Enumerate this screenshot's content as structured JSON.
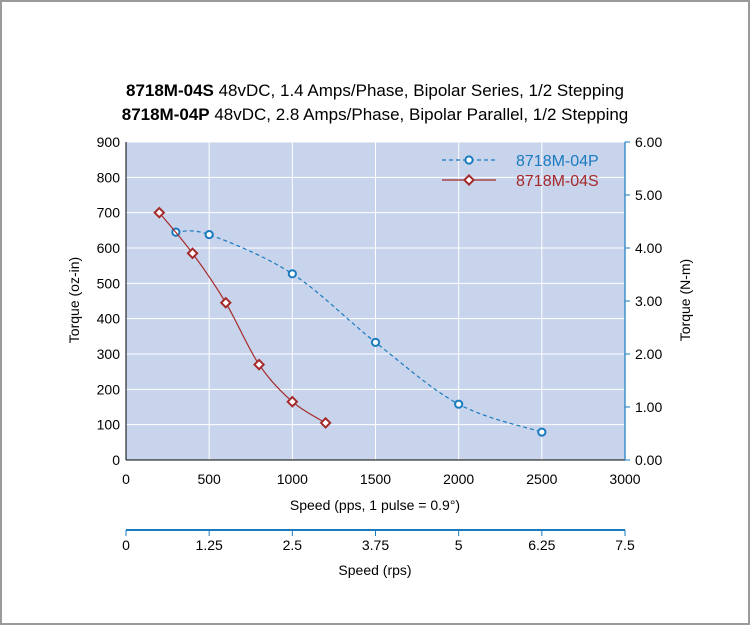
{
  "colors": {
    "plot_bg": "#c8d3ec",
    "grid": "#ffffff",
    "series_p": "#1a7bbf",
    "series_s": "#a52a2a",
    "axis_right": "#1a7bbf"
  },
  "chart_data": {
    "type": "line",
    "title": {
      "line1_model": "8718M-04S",
      "line1_text": " 48vDC, 1.4 Amps/Phase, Bipolar Series, 1/2 Stepping",
      "line2_model": "8718M-04P",
      "line2_text": " 48vDC, 2.8 Amps/Phase, Bipolar Parallel, 1/2 Stepping"
    },
    "xlabel": "Speed (pps, 1 pulse = 0.9°)",
    "xlim": [
      0,
      3000
    ],
    "x_ticks": [
      "0",
      "500",
      "1000",
      "1500",
      "2000",
      "2500",
      "3000"
    ],
    "ylabel_left": "Torque (oz-in)",
    "ylim_left": [
      0,
      900
    ],
    "y_ticks_left": [
      "0",
      "100",
      "200",
      "300",
      "400",
      "500",
      "600",
      "700",
      "800",
      "900"
    ],
    "ylabel_right": "Torque (N-m)",
    "ylim_right": [
      0,
      6
    ],
    "y_ticks_right": [
      "0.00",
      "1.00",
      "2.00",
      "3.00",
      "4.00",
      "5.00",
      "6.00"
    ],
    "secondary_xlabel": "Speed (rps)",
    "secondary_xlim": [
      0,
      7.5
    ],
    "secondary_x_ticks": [
      "0",
      "1.25",
      "2.5",
      "3.75",
      "5",
      "6.25",
      "7.5"
    ],
    "grid": true,
    "legend_position": "top-right",
    "series": [
      {
        "name": "8718M-04P",
        "color": "#1a7bbf",
        "style": "dashed",
        "marker": "circle",
        "x": [
          300,
          500,
          1000,
          1500,
          2000,
          2500
        ],
        "y": [
          645,
          638,
          527,
          333,
          158,
          79
        ]
      },
      {
        "name": "8718M-04S",
        "color": "#a52a2a",
        "style": "solid",
        "marker": "diamond",
        "x": [
          200,
          400,
          600,
          800,
          1000,
          1200
        ],
        "y": [
          700,
          585,
          445,
          270,
          165,
          105
        ]
      }
    ]
  }
}
